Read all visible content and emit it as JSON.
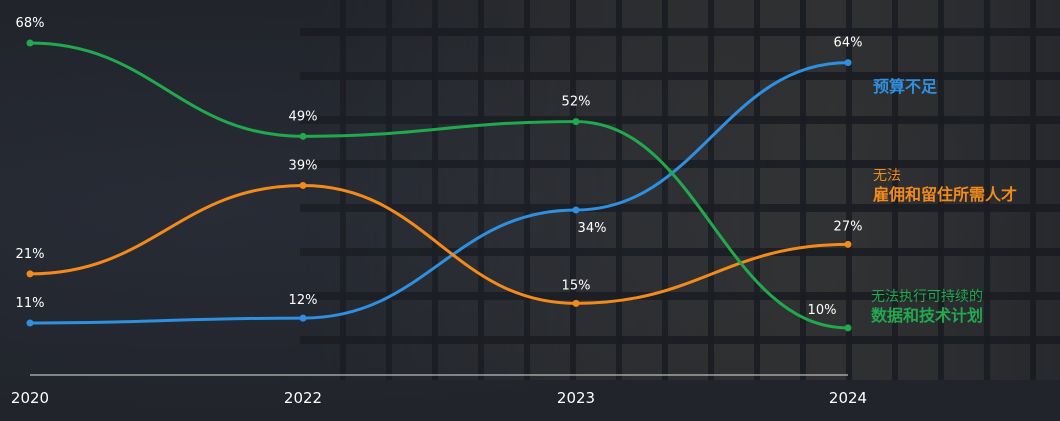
{
  "chart_data": {
    "type": "line",
    "x": [
      "2020",
      "2022",
      "2023",
      "2024"
    ],
    "series": [
      {
        "name": "预算不足",
        "color": "#2f8fe0",
        "values": [
          11,
          12,
          34,
          64
        ],
        "labels": [
          "11%",
          "12%",
          "34%",
          "64%"
        ]
      },
      {
        "name": "无法雇佣和留住所需人才",
        "name_line1": "无法",
        "name_line2": "雇佣和留住所需人才",
        "color": "#f28a1c",
        "values": [
          21,
          39,
          15,
          27
        ],
        "labels": [
          "21%",
          "39%",
          "15%",
          "27%"
        ]
      },
      {
        "name": "无法执行可持续的数据和技术计划",
        "name_line1": "无法执行可持续的",
        "name_line2": "数据和技术计划",
        "color": "#22a84f",
        "values": [
          68,
          49,
          52,
          10
        ],
        "labels": [
          "68%",
          "49%",
          "52%",
          "10%"
        ]
      }
    ],
    "grid": false,
    "axis_color": "#e8e8e8"
  }
}
